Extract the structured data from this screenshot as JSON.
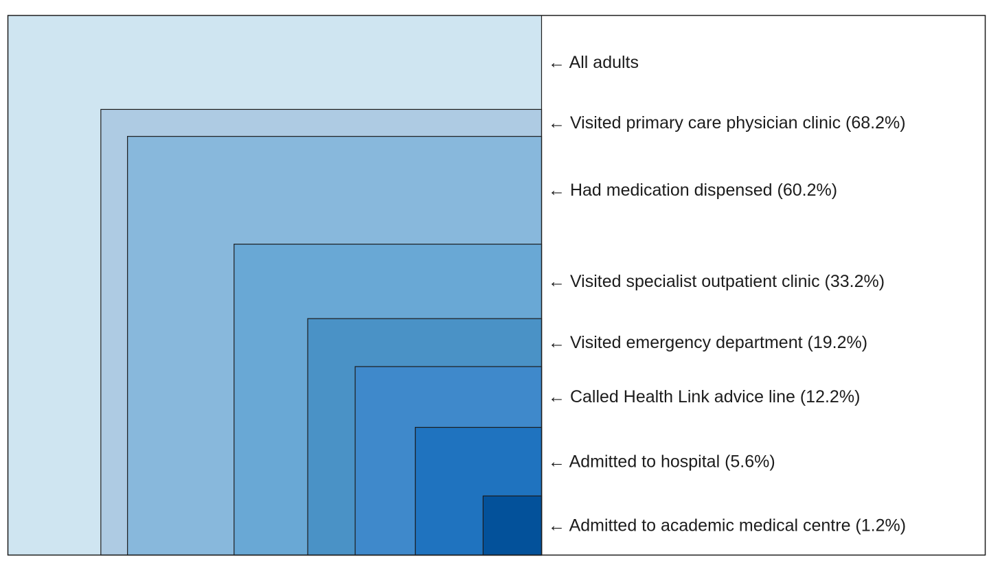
{
  "chart_data": {
    "type": "nested-area",
    "title": "",
    "arrow_glyph": "←",
    "categories": [
      "All adults",
      "Visited primary care physician clinic",
      "Had medication dispensed",
      "Visited specialist outpatient clinic",
      "Visited emergency department",
      "Called Health Link advice line",
      "Admitted to hospital",
      "Admitted to academic medical centre"
    ],
    "values": [
      100,
      68.2,
      60.2,
      33.2,
      19.2,
      12.2,
      5.6,
      1.2
    ],
    "unit": "%",
    "labels": [
      "All adults",
      "Visited primary care physician clinic (68.2%)",
      "Had medication dispensed (60.2%)",
      "Visited specialist outpatient clinic (33.2%)",
      "Visited emergency department (19.2%)",
      "Called Health Link advice line (12.2%)",
      "Admitted to hospital (5.6%)",
      "Admitted to academic medical centre (1.2%)"
    ],
    "colors": [
      "#cfe5f1",
      "#aecbe3",
      "#88b8dc",
      "#69a8d5",
      "#4a92c6",
      "#3f89cb",
      "#1f73bf",
      "#03519a"
    ],
    "border_color": "#1c1c1c",
    "text_color": "#1c1c1c"
  }
}
